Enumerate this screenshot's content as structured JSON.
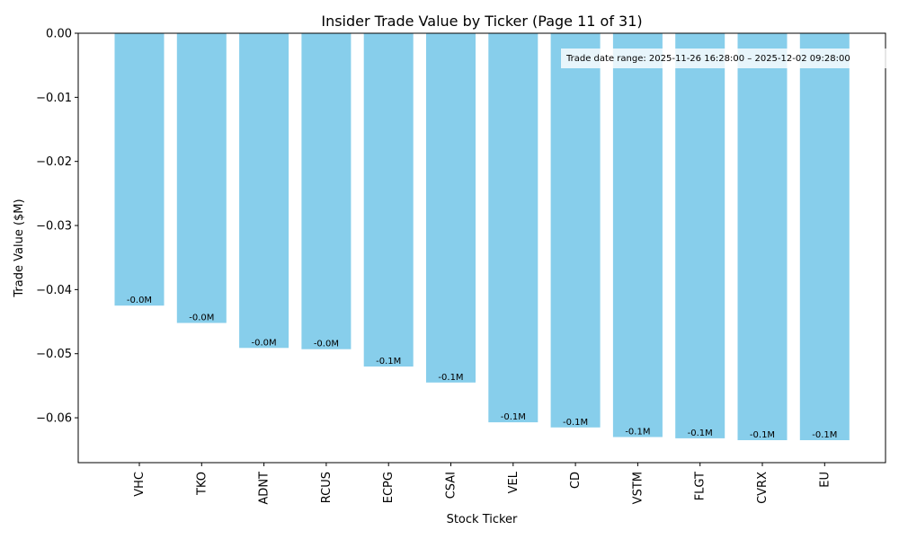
{
  "chart_data": {
    "type": "bar",
    "title": "Insider Trade Value by Ticker (Page 11 of 31)",
    "xlabel": "Stock Ticker",
    "ylabel": "Trade Value ($M)",
    "ylim": [
      -0.067,
      0.0
    ],
    "yticks": [
      0.0,
      -0.01,
      -0.02,
      -0.03,
      -0.04,
      -0.05,
      -0.06
    ],
    "ytick_labels": [
      "0.00",
      "−0.01",
      "−0.02",
      "−0.03",
      "−0.04",
      "−0.05",
      "−0.06"
    ],
    "categories": [
      "VHC",
      "TKO",
      "ADNT",
      "RCUS",
      "ECPG",
      "CSAI",
      "VEL",
      "CD",
      "VSTM",
      "FLGT",
      "CVRX",
      "EU"
    ],
    "values": [
      -0.0425,
      -0.0452,
      -0.0491,
      -0.0493,
      -0.052,
      -0.0545,
      -0.0607,
      -0.0615,
      -0.063,
      -0.0632,
      -0.0635,
      -0.0635
    ],
    "data_labels": [
      "-0.0M",
      "-0.0M",
      "-0.0M",
      "-0.0M",
      "-0.1M",
      "-0.1M",
      "-0.1M",
      "-0.1M",
      "-0.1M",
      "-0.1M",
      "-0.1M",
      "-0.1M"
    ],
    "bar_color": "#87ceeb",
    "grid": false,
    "annotation": "Trade date range: 2025-11-26 16:28:00 – 2025-12-02 09:28:00"
  }
}
